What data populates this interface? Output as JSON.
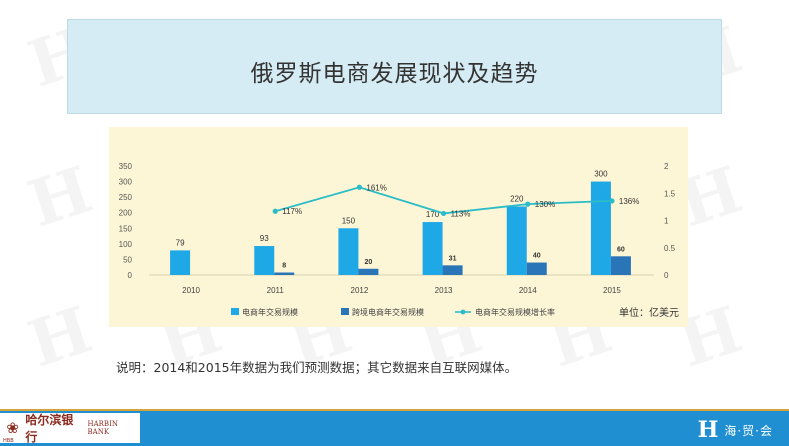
{
  "slide": {
    "title": "俄罗斯电商发展现状及趋势",
    "note": "说明：2014和2015年数据为我们预测数据；其它数据来自互联网媒体。",
    "unit_label": "单位：亿美元"
  },
  "footer": {
    "left_logo_text": "哈尔滨银行",
    "left_logo_en": "HARBIN BANK",
    "left_logo_sub": "HBB",
    "right_logo_mark": "H",
    "right_logo_text": "海·贸·会"
  },
  "watermark": {
    "text": "H"
  },
  "chart_data": {
    "type": "bar",
    "categories": [
      "2010",
      "2011",
      "2012",
      "2013",
      "2014",
      "2015"
    ],
    "series": [
      {
        "name": "电商年交易规模",
        "type": "bar",
        "axis": "left",
        "values": [
          79,
          93,
          150,
          170,
          220,
          300
        ],
        "labels": [
          "79",
          "93",
          "150",
          "170",
          "220",
          "300"
        ],
        "color": "#1ea8e6"
      },
      {
        "name": "跨境电商年交易规模",
        "type": "bar",
        "axis": "left",
        "values": [
          null,
          8,
          20,
          31,
          40,
          60
        ],
        "labels": [
          "",
          "8",
          "20",
          "31",
          "40",
          "60"
        ],
        "color": "#2a74b8"
      },
      {
        "name": "电商年交易规模增长率",
        "type": "line",
        "axis": "right",
        "values": [
          null,
          1.17,
          1.61,
          1.13,
          1.3,
          1.36
        ],
        "labels": [
          "",
          "117%",
          "161%",
          "113%",
          "130%",
          "136%"
        ],
        "color": "#2bbcc8"
      }
    ],
    "y_left": {
      "ticks": [
        "0",
        "50",
        "100",
        "150",
        "200",
        "250",
        "300",
        "350"
      ],
      "min": 0,
      "max": 350
    },
    "y_right": {
      "ticks": [
        "0",
        "0.5",
        "1",
        "1.5",
        "2"
      ],
      "min": 0,
      "max": 2
    },
    "grid": false,
    "legend_position": "bottom"
  }
}
